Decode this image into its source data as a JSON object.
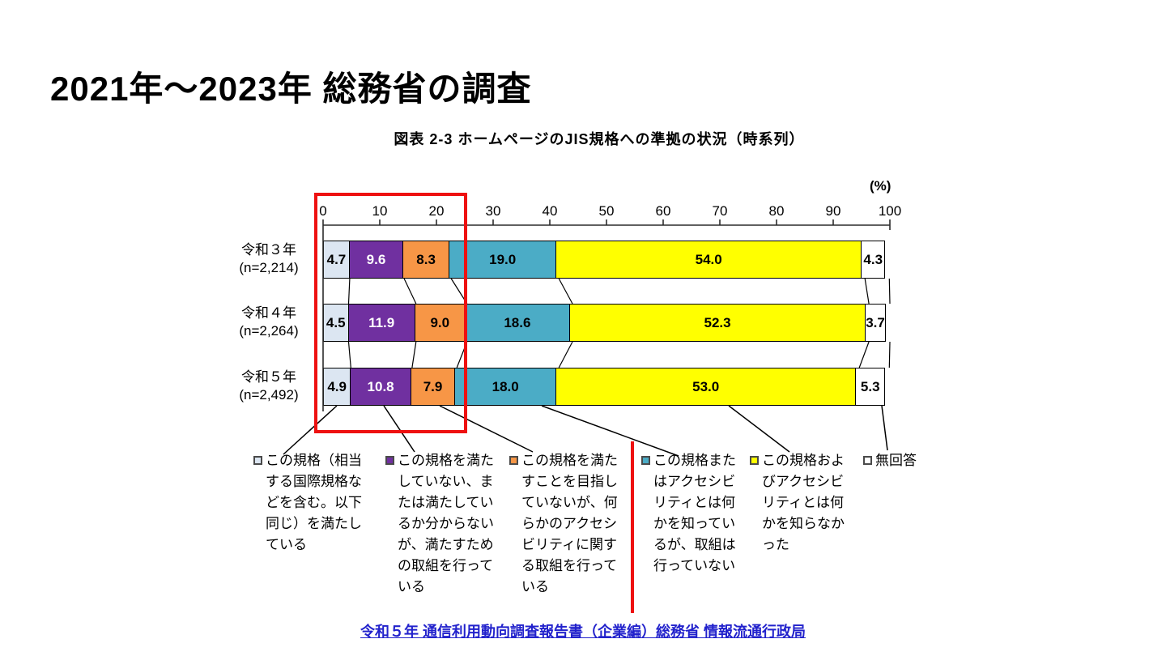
{
  "page": {
    "title": "2021年～2023年 総務省の調査"
  },
  "chart": {
    "figure_title": "図表 2-3 ホームページのJIS規格への準拠の状況（時系列）",
    "unit_label": "(%)",
    "source_link_text": "令和５年 通信利用動向調査報告書（企業編）総務省 情報流通行政局"
  },
  "chart_data": {
    "type": "bar",
    "stacked": true,
    "orientation": "horizontal",
    "unit": "%",
    "xlim": [
      0,
      100
    ],
    "x_ticks": [
      0,
      10,
      20,
      30,
      40,
      50,
      60,
      70,
      80,
      90,
      100
    ],
    "grid": false,
    "legend_position": "bottom",
    "categories": [
      "令和３年",
      "令和４年",
      "令和５年"
    ],
    "category_sublabels": [
      "(n=2,214)",
      "(n=2,264)",
      "(n=2,492)"
    ],
    "series": [
      {
        "name": "この規格（相当する国際規格などを含む。以下同じ）を満たしている",
        "color": "#dce6f2",
        "text_color": "#000000",
        "values": [
          4.7,
          4.5,
          4.9
        ]
      },
      {
        "name": "この規格を満たしていない、または満たしているか分からないが、満たすための取組を行っている",
        "color": "#7030a0",
        "text_color": "#ffffff",
        "values": [
          9.6,
          11.9,
          10.8
        ]
      },
      {
        "name": "この規格を満たすことを目指していないが、何らかのアクセシビリティに関する取組を行っている",
        "color": "#f79646",
        "text_color": "#000000",
        "values": [
          8.3,
          9.0,
          7.9
        ]
      },
      {
        "name": "この規格またはアクセシビリティとは何かを知っているが、取組は行っていない",
        "color": "#4bacc6",
        "text_color": "#000000",
        "values": [
          19.0,
          18.6,
          18.0
        ]
      },
      {
        "name": "この規格およびアクセシビリティとは何かを知らなかった",
        "color": "#ffff00",
        "text_color": "#000000",
        "values": [
          54.0,
          52.3,
          53.0
        ]
      },
      {
        "name": "無回答",
        "color": "#ffffff",
        "text_color": "#000000",
        "values": [
          4.3,
          3.7,
          5.3
        ]
      }
    ],
    "annotations": {
      "red_box_x_range": [
        0,
        25
      ],
      "red_divider_between_legend_items": [
        3,
        4
      ]
    }
  },
  "legend": {
    "items": [
      {
        "label_wrapped": "この規格（相当\nする国際規格な\nどを含む。以下\n同じ）を満たし\nている"
      },
      {
        "label_wrapped": "この規格を満た\nしていない、ま\nたは満たしてい\nるか分からない\nが、満たすため\nの取組を行って\nいる"
      },
      {
        "label_wrapped": "この規格を満た\nすことを目指し\nていないが、何\nらかのアクセシ\nビリティに関す\nる取組を行って\nいる"
      },
      {
        "label_wrapped": "この規格また\nはアクセシビ\nリティとは何\nかを知ってい\nるが、取組は\n行っていない"
      },
      {
        "label_wrapped": "この規格およ\nびアクセシビ\nリティとは何\nかを知らなか\nった"
      },
      {
        "label_wrapped": "無回答"
      }
    ]
  }
}
